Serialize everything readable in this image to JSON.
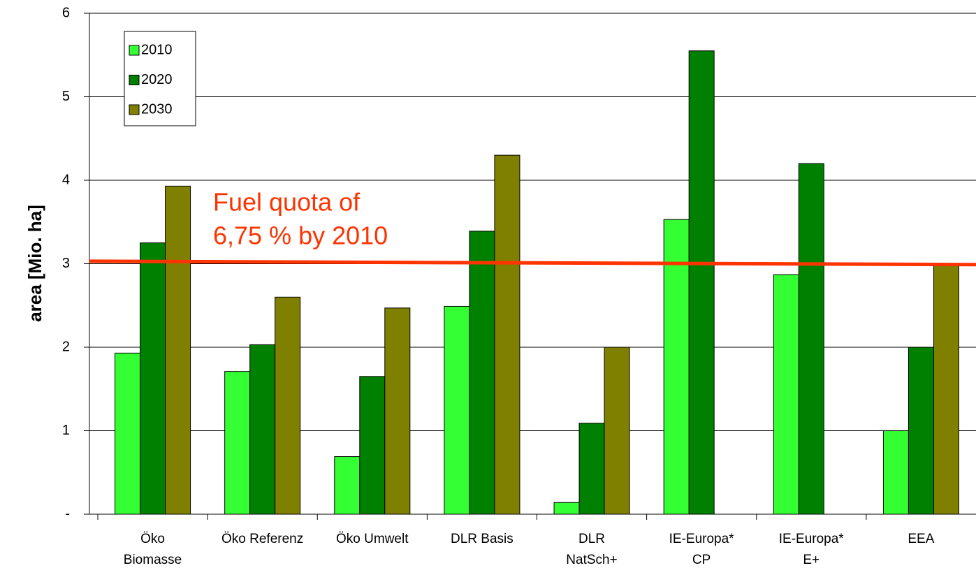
{
  "chart_data": {
    "type": "bar",
    "y_label": "area [Mio. ha]",
    "categories": [
      "Öko\nBiomasse",
      "Öko Referenz",
      "Öko Umwelt",
      "DLR Basis",
      "DLR\nNatSch+",
      "IE-Europa*\nCP",
      "IE-Europa*\nE+",
      "EEA"
    ],
    "series": [
      {
        "name": "2010",
        "color": "#33ff33",
        "values": [
          1.93,
          1.71,
          0.69,
          2.49,
          0.14,
          3.53,
          2.87,
          1.0
        ]
      },
      {
        "name": "2020",
        "color": "#008000",
        "values": [
          3.25,
          2.03,
          1.65,
          3.39,
          1.09,
          5.55,
          4.2,
          2.0
        ]
      },
      {
        "name": "2030",
        "color": "#808000",
        "values": [
          3.93,
          2.6,
          2.47,
          4.3,
          2.0,
          null,
          null,
          3.0
        ]
      }
    ],
    "ylim": [
      0,
      6
    ],
    "yticks": [
      {
        "value": 0,
        "label": "-"
      },
      1,
      2,
      3,
      4,
      5,
      6
    ],
    "grid": true,
    "legend": "upper left",
    "reference_line": {
      "values": [
        3.03,
        2.99
      ],
      "color": "#ff3300"
    },
    "annotations": [
      "Fuel quota of",
      "6,75 % by 2010"
    ]
  }
}
